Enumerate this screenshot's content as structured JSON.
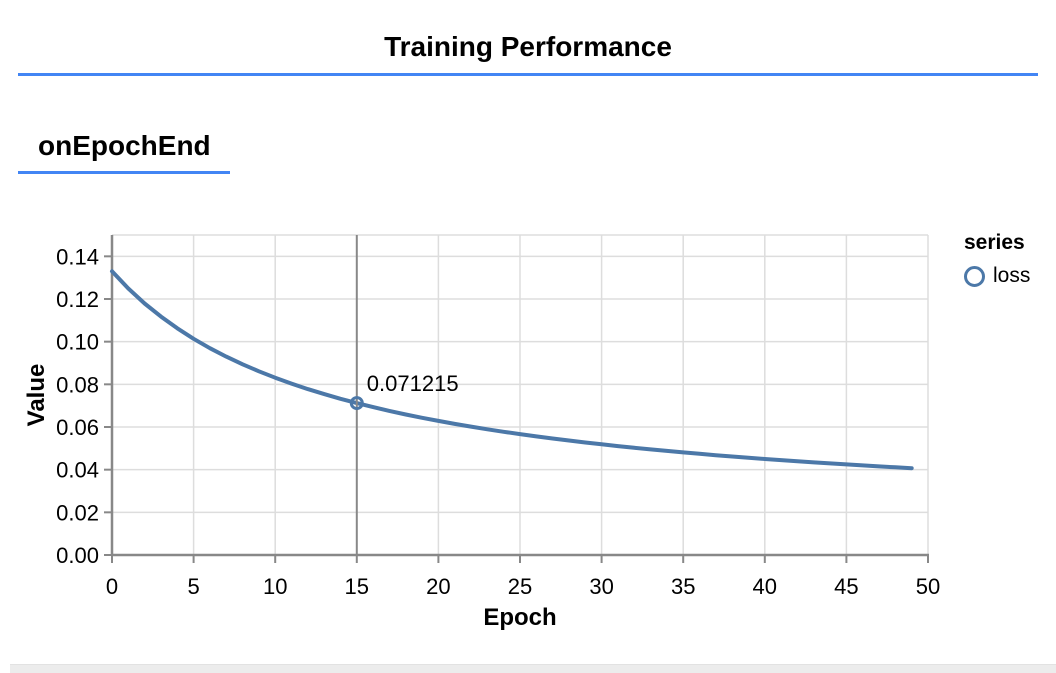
{
  "header": {
    "title": "Training Performance"
  },
  "section": {
    "title": "onEpochEnd"
  },
  "colors": {
    "rule_blue": "#4285f4",
    "line": "#4c78a8",
    "grid": "#dddddd",
    "axis": "#888888",
    "crosshair": "#888888",
    "text": "#000000"
  },
  "legend": {
    "title": "series",
    "entries": [
      {
        "label": "loss",
        "symbol": "circle",
        "color": "#4c78a8"
      }
    ]
  },
  "chart_data": {
    "type": "line",
    "title": "",
    "xlabel": "Epoch",
    "ylabel": "Value",
    "xlim": [
      0,
      50
    ],
    "ylim": [
      0,
      0.15
    ],
    "grid": true,
    "legend_position": "right",
    "x_ticks": [
      0,
      5,
      10,
      15,
      20,
      25,
      30,
      35,
      40,
      45,
      50
    ],
    "y_ticks": [
      0,
      0.02,
      0.04,
      0.06,
      0.08,
      0.1,
      0.12,
      0.14
    ],
    "y_tick_labels": [
      "0.00",
      "0.02",
      "0.04",
      "0.06",
      "0.08",
      "0.10",
      "0.12",
      "0.14"
    ],
    "series": [
      {
        "name": "loss",
        "x": [
          0,
          1,
          2,
          3,
          4,
          5,
          6,
          7,
          8,
          9,
          10,
          11,
          12,
          13,
          14,
          15,
          16,
          17,
          18,
          19,
          20,
          21,
          22,
          23,
          24,
          25,
          26,
          27,
          28,
          29,
          30,
          31,
          32,
          33,
          34,
          35,
          36,
          37,
          38,
          39,
          40,
          41,
          42,
          43,
          44,
          45,
          46,
          47,
          48,
          49
        ],
        "values": [
          0.133,
          0.124942,
          0.117913,
          0.11173,
          0.106246,
          0.101352,
          0.096956,
          0.092986,
          0.089382,
          0.086097,
          0.08309,
          0.080327,
          0.077779,
          0.075423,
          0.073237,
          0.071215,
          0.069308,
          0.067535,
          0.065875,
          0.064317,
          0.062851,
          0.061469,
          0.060166,
          0.058933,
          0.057766,
          0.056659,
          0.055608,
          0.054609,
          0.053658,
          0.052751,
          0.051887,
          0.05106,
          0.05027,
          0.049514,
          0.04879,
          0.048095,
          0.047428,
          0.046788,
          0.046172,
          0.04558,
          0.04501,
          0.044461,
          0.043931,
          0.043421,
          0.042928,
          0.042451,
          0.041991,
          0.041546,
          0.041116,
          0.040699
        ]
      }
    ],
    "highlight": {
      "epoch": 15,
      "value": 0.071215,
      "label": "0.071215"
    }
  }
}
